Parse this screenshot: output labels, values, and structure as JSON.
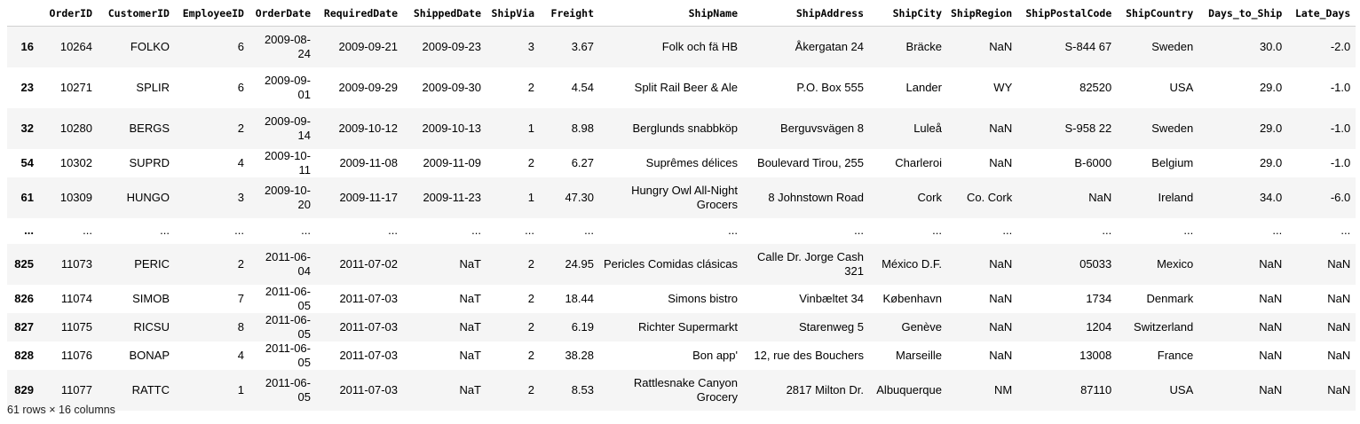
{
  "table": {
    "columns": [
      "",
      "OrderID",
      "CustomerID",
      "EmployeeID",
      "OrderDate",
      "RequiredDate",
      "ShippedDate",
      "ShipVia",
      "Freight",
      "ShipName",
      "ShipAddress",
      "ShipCity",
      "ShipRegion",
      "ShipPostalCode",
      "ShipCountry",
      "Days_to_Ship",
      "Late_Days"
    ],
    "rows": [
      [
        "16",
        "10264",
        "FOLKO",
        "6",
        "2009-08-24",
        "2009-09-21",
        "2009-09-23",
        "3",
        "3.67",
        "Folk och fä HB",
        "Åkergatan 24",
        "Bräcke",
        "NaN",
        "S-844 67",
        "Sweden",
        "30.0",
        "-2.0"
      ],
      [
        "23",
        "10271",
        "SPLIR",
        "6",
        "2009-09-01",
        "2009-09-29",
        "2009-09-30",
        "2",
        "4.54",
        "Split Rail Beer & Ale",
        "P.O. Box 555",
        "Lander",
        "WY",
        "82520",
        "USA",
        "29.0",
        "-1.0"
      ],
      [
        "32",
        "10280",
        "BERGS",
        "2",
        "2009-09-14",
        "2009-10-12",
        "2009-10-13",
        "1",
        "8.98",
        "Berglunds snabbköp",
        "Berguvsvägen 8",
        "Luleå",
        "NaN",
        "S-958 22",
        "Sweden",
        "29.0",
        "-1.0"
      ],
      [
        "54",
        "10302",
        "SUPRD",
        "4",
        "2009-10-11",
        "2009-11-08",
        "2009-11-09",
        "2",
        "6.27",
        "Suprêmes délices",
        "Boulevard Tirou, 255",
        "Charleroi",
        "NaN",
        "B-6000",
        "Belgium",
        "29.0",
        "-1.0"
      ],
      [
        "61",
        "10309",
        "HUNGO",
        "3",
        "2009-10-20",
        "2009-11-17",
        "2009-11-23",
        "1",
        "47.30",
        "Hungry Owl All-Night Grocers",
        "8 Johnstown Road",
        "Cork",
        "Co. Cork",
        "NaN",
        "Ireland",
        "34.0",
        "-6.0"
      ],
      [
        "...",
        "...",
        "...",
        "...",
        "...",
        "...",
        "...",
        "...",
        "...",
        "...",
        "...",
        "...",
        "...",
        "...",
        "...",
        "...",
        "..."
      ],
      [
        "825",
        "11073",
        "PERIC",
        "2",
        "2011-06-04",
        "2011-07-02",
        "NaT",
        "2",
        "24.95",
        "Pericles Comidas clásicas",
        "Calle Dr. Jorge Cash 321",
        "México D.F.",
        "NaN",
        "05033",
        "Mexico",
        "NaN",
        "NaN"
      ],
      [
        "826",
        "11074",
        "SIMOB",
        "7",
        "2011-06-05",
        "2011-07-03",
        "NaT",
        "2",
        "18.44",
        "Simons bistro",
        "Vinbæltet 34",
        "København",
        "NaN",
        "1734",
        "Denmark",
        "NaN",
        "NaN"
      ],
      [
        "827",
        "11075",
        "RICSU",
        "8",
        "2011-06-05",
        "2011-07-03",
        "NaT",
        "2",
        "6.19",
        "Richter Supermarkt",
        "Starenweg 5",
        "Genève",
        "NaN",
        "1204",
        "Switzerland",
        "NaN",
        "NaN"
      ],
      [
        "828",
        "11076",
        "BONAP",
        "4",
        "2011-06-05",
        "2011-07-03",
        "NaT",
        "2",
        "38.28",
        "Bon app'",
        "12, rue des Bouchers",
        "Marseille",
        "NaN",
        "13008",
        "France",
        "NaN",
        "NaN"
      ],
      [
        "829",
        "11077",
        "RATTC",
        "1",
        "2011-06-05",
        "2011-07-03",
        "NaT",
        "2",
        "8.53",
        "Rattlesnake Canyon Grocery",
        "2817 Milton Dr.",
        "Albuquerque",
        "NM",
        "87110",
        "USA",
        "NaN",
        "NaN"
      ]
    ]
  },
  "footer": {
    "shape_text": "61 rows × 16 columns"
  }
}
